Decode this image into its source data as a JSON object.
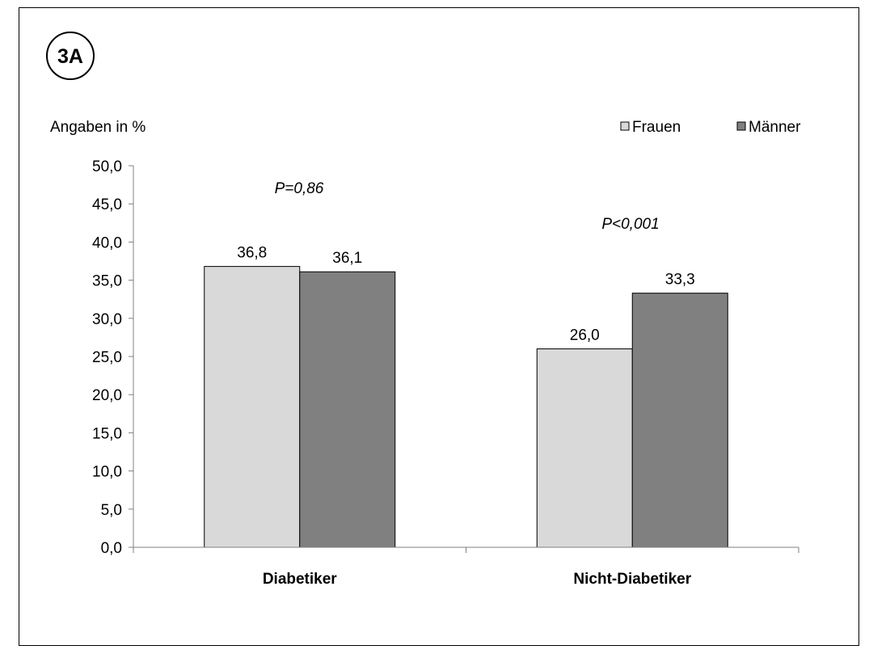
{
  "panel_label": "3A",
  "chart_data": {
    "type": "bar",
    "ylabel": "Angaben in %",
    "categories": [
      "Diabetiker",
      "Nicht-Diabetiker"
    ],
    "series": [
      {
        "name": "Frauen",
        "values": [
          36.8,
          26.0
        ],
        "value_labels": [
          "36,8",
          "26,0"
        ],
        "color": "#d9d9d9"
      },
      {
        "name": "Männer",
        "values": [
          36.1,
          33.3
        ],
        "value_labels": [
          "36,1",
          "33,3"
        ],
        "color": "#808080"
      }
    ],
    "annotations": [
      "P=0,86",
      "P<0,001"
    ],
    "ylim": [
      0,
      50
    ],
    "yticks": [
      0,
      5,
      10,
      15,
      20,
      25,
      30,
      35,
      40,
      45,
      50
    ],
    "ytick_labels": [
      "0,0",
      "5,0",
      "10,0",
      "15,0",
      "20,0",
      "25,0",
      "30,0",
      "35,0",
      "40,0",
      "45,0",
      "50,0"
    ],
    "legend_position": "top-right",
    "grid": false
  }
}
